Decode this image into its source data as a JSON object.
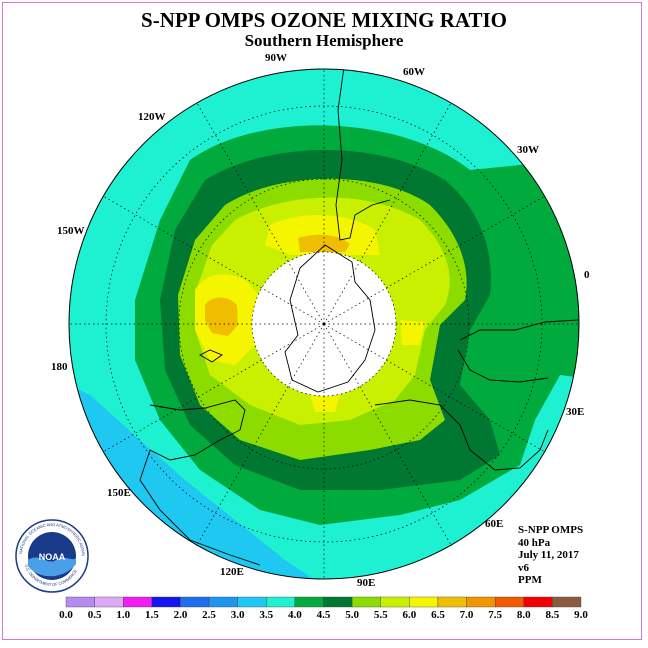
{
  "header": {
    "title": "S-NPP OMPS OZONE MIXING RATIO",
    "subtitle": "Southern Hemisphere"
  },
  "map": {
    "longitude_labels": [
      "90W",
      "60W",
      "120W",
      "30W",
      "150W",
      "0",
      "180",
      "30E",
      "150E",
      "60E",
      "120E",
      "90E"
    ],
    "colors": {
      "ocean_band_3_5_4_0": "#1ef0d2",
      "band_4_0_4_5": "#00aa3c",
      "band_4_5_5_0": "#007832",
      "band_5_0_5_5": "#8cdc00",
      "band_5_5_6_0": "#c8f000",
      "band_6_0_6_5": "#f5f500",
      "band_6_5_7_0": "#f0be00",
      "band_7_0_7_5": "#f09600",
      "band_3_0_3_5": "#1ec8f0",
      "polar_night_hole": "#ffffff"
    }
  },
  "info": {
    "lines": [
      "S-NPP OMPS",
      "40 hPa",
      "July 11, 2017",
      "v6",
      "PPM"
    ]
  },
  "logo": {
    "text": "NOAA",
    "ring_text": "NATIONAL OCEANIC AND ATMOSPHERIC ADMINISTRATION",
    "lower_text": "U.S. DEPARTMENT OF COMMERCE"
  },
  "legend": {
    "ticks": [
      "0.0",
      "0.5",
      "1.0",
      "1.5",
      "2.0",
      "2.5",
      "3.0",
      "3.5",
      "4.0",
      "4.5",
      "5.0",
      "5.5",
      "6.0",
      "6.5",
      "7.0",
      "7.5",
      "8.0",
      "8.5",
      "9.0"
    ],
    "colors": [
      "#b48cf0",
      "#dcaaf5",
      "#f01ef0",
      "#1414f0",
      "#1e6ef0",
      "#1e96f0",
      "#1ec8f0",
      "#1ef0d2",
      "#00aa3c",
      "#007832",
      "#8cdc00",
      "#c8f000",
      "#f5f500",
      "#f0be00",
      "#f09600",
      "#f05a00",
      "#f00000",
      "#8c5a3c"
    ]
  }
}
